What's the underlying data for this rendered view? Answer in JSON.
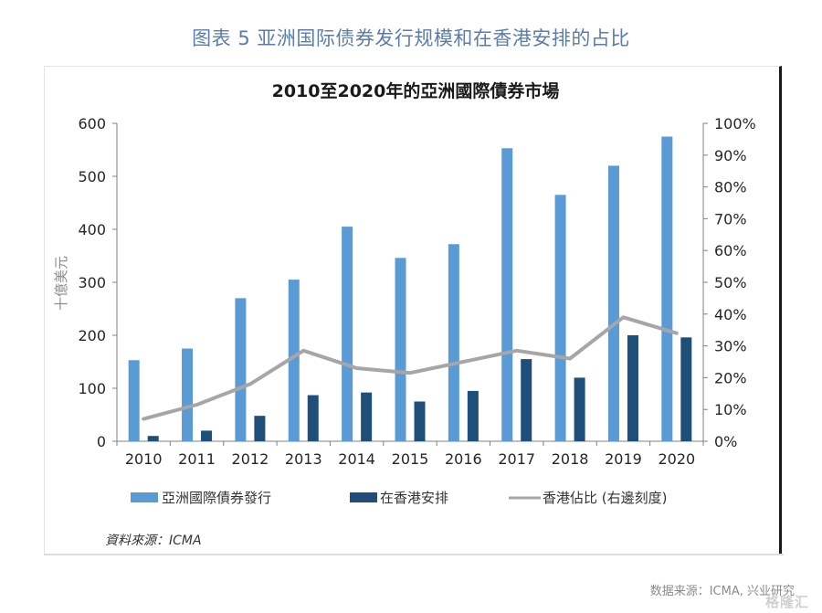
{
  "figure_title": "图表 5 亚洲国际债券发行规模和在香港安排的占比",
  "footer_source": "数据来源：ICMA, 兴业研究",
  "watermark": "格隆汇",
  "chart_data": {
    "type": "bar",
    "title": "2010至2020年的亞洲國際債券市場",
    "categories": [
      "2010",
      "2011",
      "2012",
      "2013",
      "2014",
      "2015",
      "2016",
      "2017",
      "2018",
      "2019",
      "2020"
    ],
    "ylabel": "十億美元",
    "ylim": [
      0,
      600
    ],
    "yticks": [
      "0",
      "100",
      "200",
      "300",
      "400",
      "500",
      "600"
    ],
    "y2lim": [
      0,
      100
    ],
    "y2ticks": [
      "0%",
      "10%",
      "20%",
      "30%",
      "40%",
      "50%",
      "60%",
      "70%",
      "80%",
      "90%",
      "100%"
    ],
    "grid": false,
    "legend_position": "bottom",
    "series": [
      {
        "name": "亞洲國際債券發行",
        "type": "bar",
        "axis": "left",
        "color": "#5b9bd5",
        "values": [
          153,
          175,
          270,
          305,
          405,
          346,
          372,
          553,
          465,
          520,
          575
        ]
      },
      {
        "name": "在香港安排",
        "type": "bar",
        "axis": "left",
        "color": "#1f4e79",
        "values": [
          10,
          20,
          48,
          87,
          92,
          75,
          95,
          155,
          120,
          200,
          196
        ]
      },
      {
        "name": "香港佔比 (右邊刻度)",
        "type": "line",
        "axis": "right",
        "color": "#a6a6a6",
        "values": [
          7,
          11.5,
          18,
          28.5,
          23,
          21.5,
          25,
          28.5,
          26,
          39,
          34
        ]
      }
    ],
    "source_note": "資料來源：ICMA"
  }
}
